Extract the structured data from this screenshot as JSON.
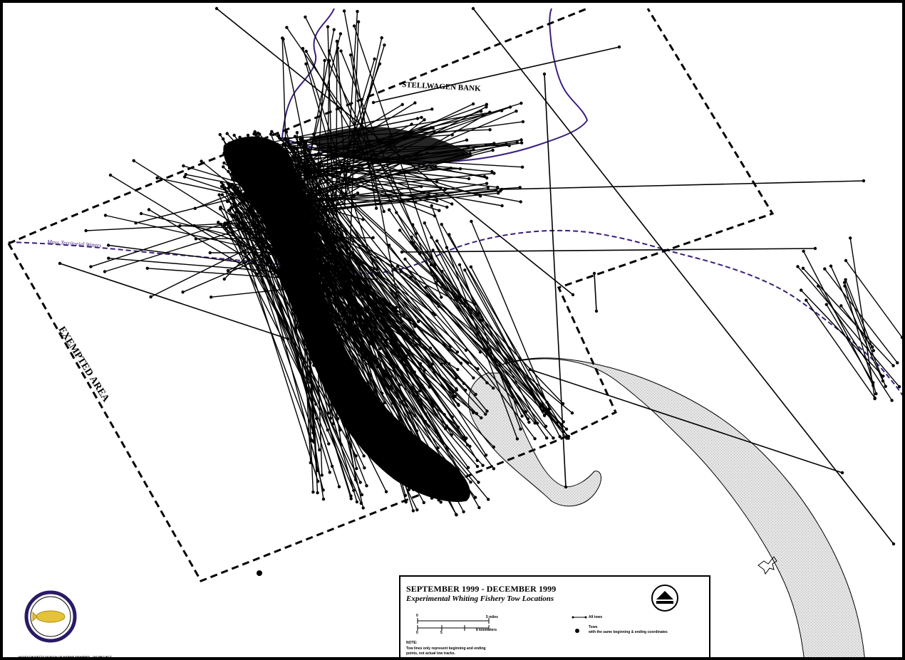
{
  "map": {
    "labels": {
      "bank": "STELLWAGEN BANK",
      "exempted_area": "EXEMPTED AREA",
      "state_line": "Mass Territorial Waters"
    }
  },
  "legend": {
    "title_line1": "SEPTEMBER 1999 - DECEMBER 1999",
    "title_line2": "Experimental Whiting Fishery Tow Locations",
    "scale_miles": [
      "0",
      "5 miles"
    ],
    "scale_km": [
      "0",
      "5",
      "8 kilometers"
    ],
    "note_heading": "NOTE:",
    "note_text": "Tow lines only represent beginning and ending points, not actual tow tracks.",
    "all_tows_label": "All tows",
    "tows_label": "Tows",
    "tows_sublabel": "with the same beginning & ending coordinates"
  },
  "footer": {
    "credit": "MASSACHUSETTS DIVISION OF MARINE FISHERIES · GIS PROJECT"
  },
  "colors": {
    "boundary": "#3a1e7a",
    "land": "#e6e6e6",
    "tows": "#000000"
  },
  "icons": [
    "state-seal-icon",
    "dmf-logo-icon"
  ]
}
